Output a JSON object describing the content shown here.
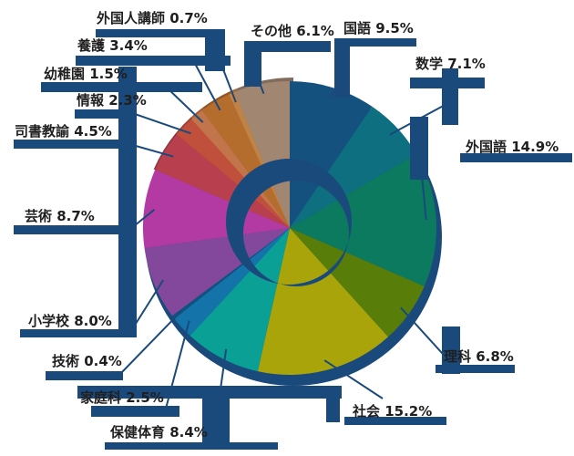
{
  "figure": {
    "description": "Japanese subject share pie chart with thick navy callout bars and crescent overlay",
    "background_color": "#ffffff",
    "accent_color": "#1a4a7c",
    "text_color": "#1f1f1f"
  },
  "chart_data": {
    "type": "pie",
    "title": "",
    "unit": "%",
    "start_angle": "top",
    "direction": "clockwise",
    "legend_position": "none",
    "slices": [
      {
        "label": "国語",
        "value": 9.5,
        "color": "#15517e"
      },
      {
        "label": "数学",
        "value": 7.1,
        "color": "#0e6f80"
      },
      {
        "label": "外国語",
        "value": 14.9,
        "color": "#0c7a5f"
      },
      {
        "label": "理科",
        "value": 6.8,
        "color": "#587d08"
      },
      {
        "label": "社会",
        "value": 15.2,
        "color": "#a8a40a"
      },
      {
        "label": "保健体育",
        "value": 8.4,
        "color": "#0ba096"
      },
      {
        "label": "家庭科",
        "value": 2.5,
        "color": "#1474a9"
      },
      {
        "label": "技術",
        "value": 0.4,
        "color": "#11527f"
      },
      {
        "label": "小学校",
        "value": 8.0,
        "color": "#83489c"
      },
      {
        "label": "芸術",
        "value": 8.7,
        "color": "#b23aa2"
      },
      {
        "label": "司書教諭",
        "value": 4.5,
        "color": "#b8404e"
      },
      {
        "label": "情報",
        "value": 2.3,
        "color": "#c0503c"
      },
      {
        "label": "幼稚園",
        "value": 1.5,
        "color": "#c2744a"
      },
      {
        "label": "養護",
        "value": 3.4,
        "color": "#b56d2d"
      },
      {
        "label": "外国人講師",
        "value": 0.7,
        "color": "#c08347"
      },
      {
        "label": "その他",
        "value": 6.1,
        "color": "#a18672"
      }
    ]
  }
}
